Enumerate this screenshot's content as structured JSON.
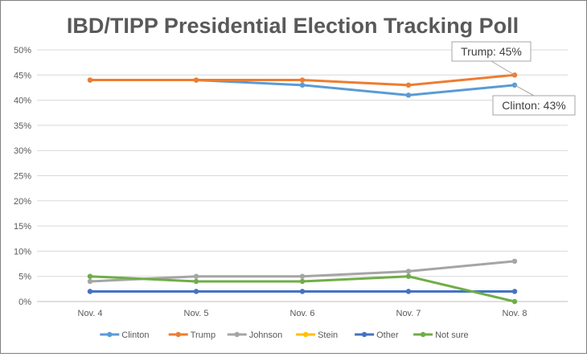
{
  "chart_data": {
    "type": "line",
    "title": "IBD/TIPP Presidential Election Tracking Poll",
    "xlabel": "",
    "ylabel": "",
    "categories": [
      "Nov. 4",
      "Nov. 5",
      "Nov. 6",
      "Nov. 7",
      "Nov. 8"
    ],
    "ylim": [
      0,
      50
    ],
    "y_ticks": [
      0,
      5,
      10,
      15,
      20,
      25,
      30,
      35,
      40,
      45,
      50
    ],
    "y_tick_labels": [
      "0%",
      "5%",
      "10%",
      "15%",
      "20%",
      "25%",
      "30%",
      "35%",
      "40%",
      "45%",
      "50%"
    ],
    "grid": true,
    "legend_position": "bottom",
    "series": [
      {
        "name": "Clinton",
        "color": "#5b9bd5",
        "values": [
          44,
          44,
          43,
          41,
          43
        ]
      },
      {
        "name": "Trump",
        "color": "#ed7d31",
        "values": [
          44,
          44,
          44,
          43,
          45
        ]
      },
      {
        "name": "Johnson",
        "color": "#a5a5a5",
        "values": [
          4,
          5,
          5,
          6,
          8
        ]
      },
      {
        "name": "Stein",
        "color": "#ffc000",
        "values": [
          2,
          2,
          2,
          2,
          2
        ]
      },
      {
        "name": "Other",
        "color": "#4472c4",
        "values": [
          2,
          2,
          2,
          2,
          2
        ]
      },
      {
        "name": "Not sure",
        "color": "#70ad47",
        "values": [
          5,
          4,
          4,
          5,
          0
        ]
      }
    ],
    "annotations": [
      {
        "text": "Trump:  45%",
        "series": "Trump",
        "x": "Nov. 8",
        "y": 45
      },
      {
        "text": "Clinton:  43%",
        "series": "Clinton",
        "x": "Nov. 8",
        "y": 43
      }
    ]
  }
}
